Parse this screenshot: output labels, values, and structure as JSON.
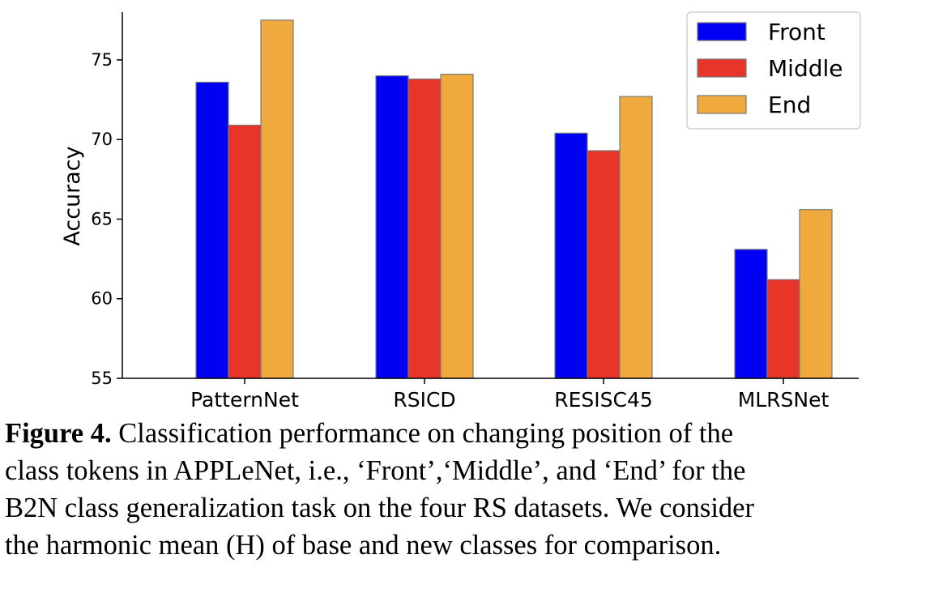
{
  "chart_data": {
    "type": "bar",
    "categories": [
      "PatternNet",
      "RSICD",
      "RESISC45",
      "MLRSNet"
    ],
    "series": [
      {
        "name": "Front",
        "color": "#0000f5",
        "values": [
          73.6,
          74.0,
          70.4,
          63.1
        ]
      },
      {
        "name": "Middle",
        "color": "#e8352a",
        "values": [
          70.9,
          73.8,
          69.3,
          61.2
        ]
      },
      {
        "name": "End",
        "color": "#efa93c",
        "values": [
          77.5,
          74.1,
          72.7,
          65.6
        ]
      }
    ],
    "ylabel": "Accuracy",
    "ylim": [
      55,
      78
    ],
    "yticks": [
      55,
      60,
      65,
      70,
      75
    ],
    "legend_position": "top-right",
    "grid": false
  },
  "caption": {
    "label": "Figure 4.",
    "lines": [
      "Classification performance on changing position of the",
      "class tokens in APPLeNet, i.e., ‘Front’,‘Middle’, and ‘End’ for the",
      "B2N class generalization task on the four RS datasets. We consider",
      "the harmonic mean (H) of base and new classes for comparison."
    ]
  }
}
